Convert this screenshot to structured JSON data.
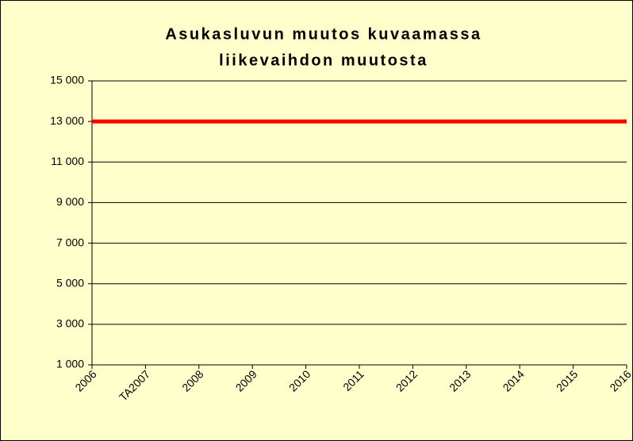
{
  "chart_data": {
    "type": "line",
    "title": [
      "Asukasluvun muutos kuvaamassa",
      "liikevaihdon muutosta"
    ],
    "categories": [
      "2006",
      "TA2007",
      "2008",
      "2009",
      "2010",
      "2011",
      "2012",
      "2013",
      "2014",
      "2015",
      "2016"
    ],
    "series": [
      {
        "color": "#ff0000",
        "values": [
          13000,
          13000,
          13000,
          13000,
          13000,
          13000,
          13000,
          13000,
          13000,
          13000,
          13000
        ]
      }
    ],
    "ylim": [
      1000,
      15000
    ],
    "yticks": [
      {
        "value": 1000,
        "label": "1 000"
      },
      {
        "value": 3000,
        "label": "3 000"
      },
      {
        "value": 5000,
        "label": "5 000"
      },
      {
        "value": 7000,
        "label": "7 000"
      },
      {
        "value": 9000,
        "label": "9 000"
      },
      {
        "value": 11000,
        "label": "11 000"
      },
      {
        "value": 13000,
        "label": "13 000"
      },
      {
        "value": 15000,
        "label": "15 000"
      }
    ],
    "grid": true
  }
}
